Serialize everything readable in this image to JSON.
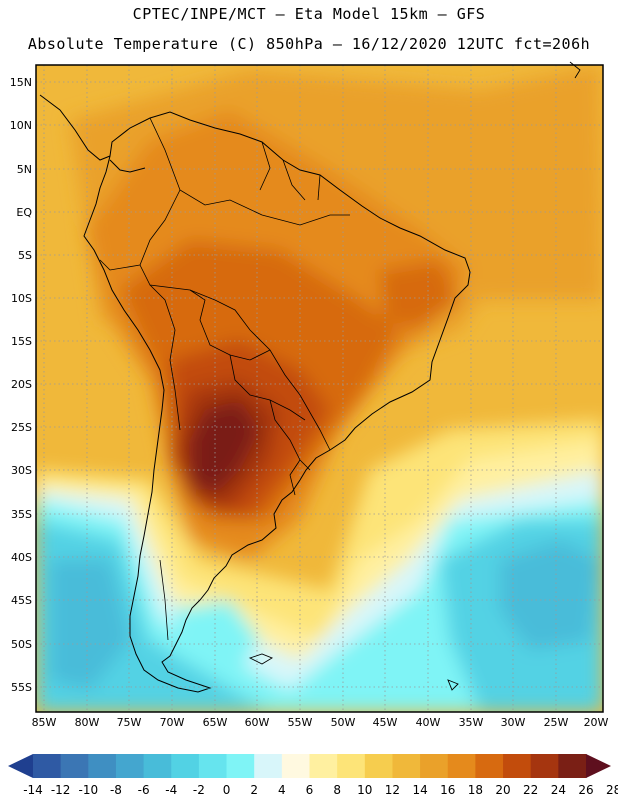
{
  "header": {
    "line1": "CPTEC/INPE/MCT –  Eta Model 15km – GFS",
    "line2": "Absolute Temperature (C) 850hPa – 16/12/2020 12UTC fct=206h"
  },
  "map": {
    "lat_labels": [
      "15N",
      "10N",
      "5N",
      "EQ",
      "5S",
      "10S",
      "15S",
      "20S",
      "25S",
      "30S",
      "35S",
      "40S",
      "45S",
      "50S",
      "55S"
    ],
    "lon_labels": [
      "85W",
      "80W",
      "75W",
      "70W",
      "65W",
      "60W",
      "55W",
      "50W",
      "45W",
      "40W",
      "35W",
      "30W",
      "25W",
      "20W"
    ]
  },
  "colorbar": {
    "labels": [
      "-14",
      "-12",
      "-10",
      "-8",
      "-6",
      "-4",
      "-2",
      "0",
      "2",
      "4",
      "6",
      "8",
      "10",
      "12",
      "14",
      "16",
      "18",
      "20",
      "22",
      "24",
      "26",
      "28"
    ],
    "colors": [
      "#1f3f8f",
      "#2f5aa4",
      "#3b76b4",
      "#3f8fc2",
      "#44a6cf",
      "#48bcd9",
      "#52d2e4",
      "#66e4ee",
      "#7ff4f6",
      "#d8f6fa",
      "#fff9e0",
      "#fff0a0",
      "#fde478",
      "#f6cd4e",
      "#f0b83a",
      "#eaa12a",
      "#e58a1c",
      "#d76a10",
      "#c24c0c",
      "#a5350f",
      "#7a1f15",
      "#5e0f1e"
    ]
  }
}
